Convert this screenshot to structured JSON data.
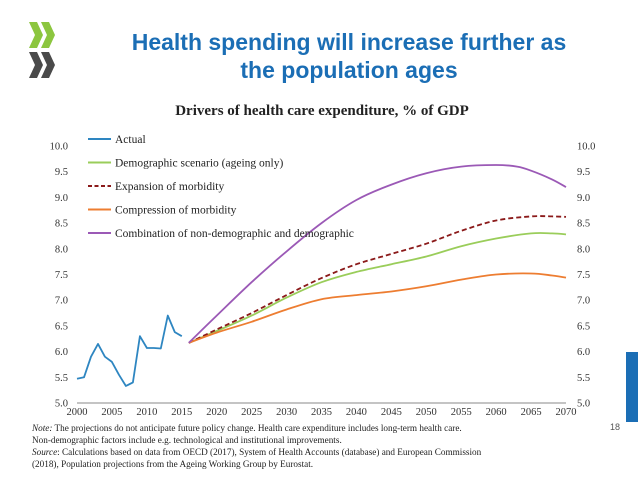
{
  "slide": {
    "title_line1": "Health spending will increase further as",
    "title_line2": "the population ages",
    "page_number": "18",
    "note_label": "Note:",
    "note_text": " The projections do not anticipate future policy change. Health care expenditure includes long-term health care.",
    "note_line2": "Non-demographic factors include e.g. technological and institutional improvements.",
    "source_label": "Source",
    "source_text": ": Calculations based on data from OECD (2017), System of Health Accounts (database) and European Commission",
    "source_line2": "(2018), Population projections from the Ageing Working Group by Eurostat.",
    "colors": {
      "accent": "#1b6eb5",
      "logo_green": "#8cc63f"
    }
  },
  "chart_data": {
    "type": "line",
    "title": "Drivers of health care expenditure,  % of GDP",
    "xlabel": "",
    "ylabel": "",
    "xlim": [
      2000,
      2070
    ],
    "ylim": [
      5.0,
      10.0
    ],
    "x_ticks": [
      "2000",
      "2005",
      "2010",
      "2015",
      "2020",
      "2025",
      "2030",
      "2035",
      "2040",
      "2045",
      "2050",
      "2055",
      "2060",
      "2065",
      "2070"
    ],
    "y_ticks": [
      "5.0",
      "5.5",
      "6.0",
      "6.5",
      "7.0",
      "7.5",
      "8.0",
      "8.5",
      "9.0",
      "9.5",
      "10.0"
    ],
    "legend_position": "top-left",
    "series": [
      {
        "name": "Actual",
        "color": "#2e86c1",
        "dash": "solid",
        "x": [
          2000,
          2001,
          2002,
          2003,
          2004,
          2005,
          2006,
          2007,
          2008,
          2009,
          2010,
          2011,
          2012,
          2013,
          2014,
          2015
        ],
        "y": [
          5.47,
          5.5,
          5.9,
          6.15,
          5.9,
          5.8,
          5.55,
          5.33,
          5.4,
          6.3,
          6.07,
          6.07,
          6.06,
          6.7,
          6.38,
          6.3
        ]
      },
      {
        "name": "Demographic scenario (ageing only)",
        "color": "#9acd5a",
        "dash": "solid",
        "x": [
          2016,
          2020,
          2025,
          2030,
          2035,
          2040,
          2045,
          2050,
          2055,
          2060,
          2065,
          2068,
          2070
        ],
        "y": [
          6.17,
          6.4,
          6.7,
          7.05,
          7.35,
          7.55,
          7.7,
          7.85,
          8.05,
          8.2,
          8.3,
          8.3,
          8.28
        ]
      },
      {
        "name": "Expansion of morbidity",
        "color": "#8b1a1a",
        "dash": "dashed",
        "x": [
          2016,
          2020,
          2025,
          2030,
          2035,
          2040,
          2045,
          2050,
          2055,
          2060,
          2065,
          2068,
          2070
        ],
        "y": [
          6.17,
          6.43,
          6.75,
          7.1,
          7.43,
          7.7,
          7.9,
          8.1,
          8.35,
          8.55,
          8.63,
          8.63,
          8.62
        ]
      },
      {
        "name": "Compression of morbidity",
        "color": "#ed7d31",
        "dash": "solid",
        "x": [
          2016,
          2020,
          2025,
          2030,
          2035,
          2040,
          2045,
          2050,
          2055,
          2060,
          2065,
          2068,
          2070
        ],
        "y": [
          6.17,
          6.37,
          6.58,
          6.82,
          7.02,
          7.1,
          7.17,
          7.27,
          7.4,
          7.5,
          7.52,
          7.48,
          7.44
        ]
      },
      {
        "name": "Combination of non-demographic and demographic",
        "color": "#9b59b6",
        "dash": "solid",
        "x": [
          2016,
          2020,
          2025,
          2030,
          2035,
          2040,
          2045,
          2050,
          2055,
          2060,
          2063,
          2065,
          2068,
          2070
        ],
        "y": [
          6.17,
          6.7,
          7.35,
          7.95,
          8.5,
          8.95,
          9.25,
          9.47,
          9.6,
          9.63,
          9.6,
          9.52,
          9.35,
          9.2
        ]
      }
    ]
  }
}
